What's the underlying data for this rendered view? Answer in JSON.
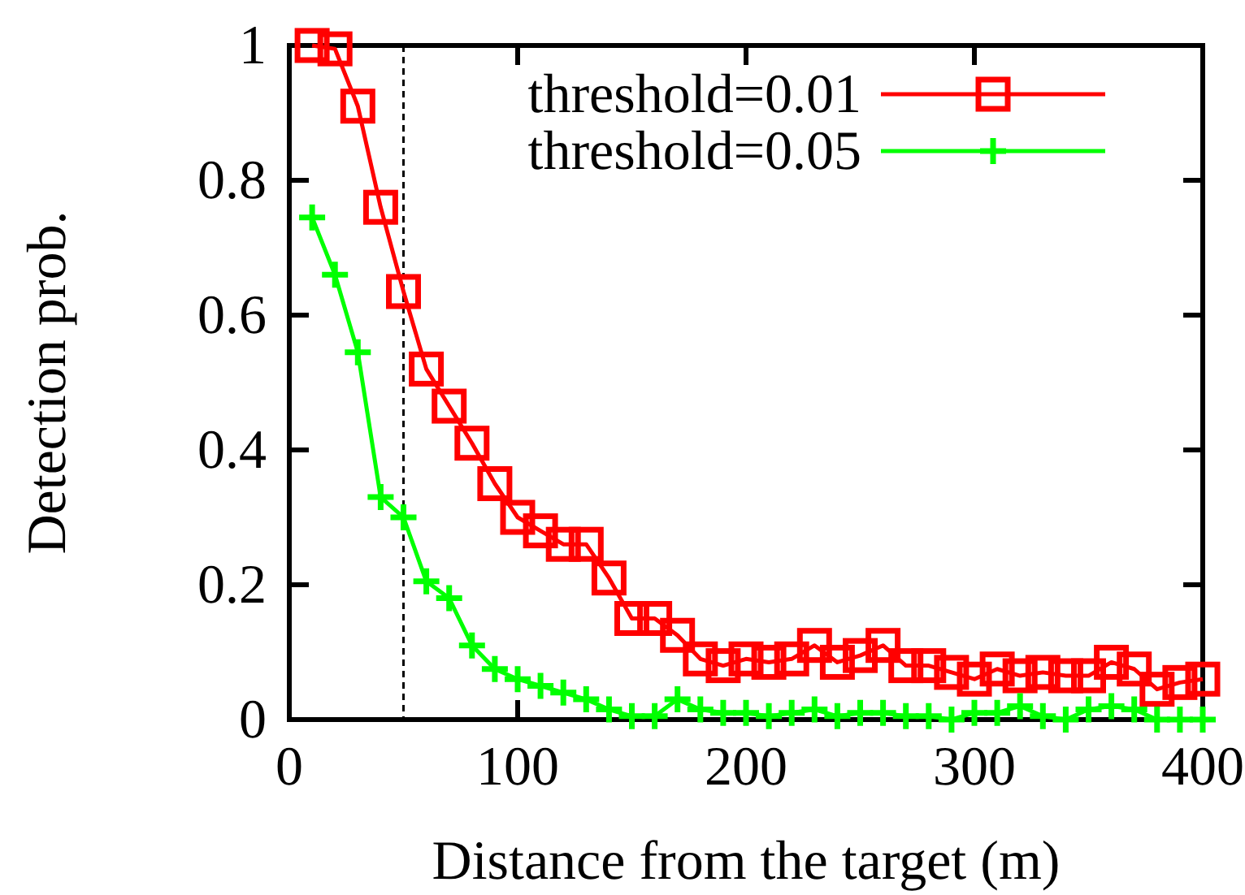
{
  "chart_data": {
    "type": "line",
    "xlabel": "Distance from the target (m)",
    "ylabel": "Detection prob.",
    "x": [
      10,
      20,
      30,
      40,
      50,
      60,
      70,
      80,
      90,
      100,
      110,
      120,
      130,
      140,
      150,
      160,
      170,
      180,
      190,
      200,
      210,
      220,
      230,
      240,
      250,
      260,
      270,
      280,
      290,
      300,
      310,
      320,
      330,
      340,
      350,
      360,
      370,
      380,
      390,
      400
    ],
    "series": [
      {
        "name": "threshold=0.01",
        "color": "#ff0000",
        "marker": "square",
        "values": [
          1.0,
          0.995,
          0.91,
          0.76,
          0.635,
          0.52,
          0.465,
          0.41,
          0.35,
          0.3,
          0.28,
          0.26,
          0.26,
          0.21,
          0.15,
          0.15,
          0.125,
          0.09,
          0.08,
          0.09,
          0.085,
          0.09,
          0.11,
          0.085,
          0.095,
          0.11,
          0.08,
          0.08,
          0.07,
          0.06,
          0.075,
          0.065,
          0.07,
          0.065,
          0.065,
          0.085,
          0.075,
          0.045,
          0.055,
          0.06
        ]
      },
      {
        "name": "threshold=0.05",
        "color": "#00ff00",
        "marker": "cross",
        "values": [
          0.745,
          0.66,
          0.545,
          0.33,
          0.3,
          0.205,
          0.18,
          0.11,
          0.075,
          0.06,
          0.05,
          0.04,
          0.03,
          0.015,
          0.005,
          0.005,
          0.03,
          0.015,
          0.01,
          0.01,
          0.005,
          0.01,
          0.015,
          0.005,
          0.01,
          0.01,
          0.005,
          0.005,
          0.0,
          0.01,
          0.01,
          0.02,
          0.005,
          0.0,
          0.015,
          0.02,
          0.015,
          0.0,
          0.0,
          0.0
        ]
      }
    ],
    "xlim": [
      0,
      400
    ],
    "xticks": [
      0,
      100,
      200,
      300,
      400
    ],
    "ylim": [
      0,
      1
    ],
    "yticks": [
      0,
      0.2,
      0.4,
      0.6,
      0.8,
      1
    ],
    "ref_lines": [
      {
        "axis": "x",
        "value": 50,
        "color": "#000000",
        "line_style": "dashed"
      }
    ],
    "legend": "top right",
    "grid": false,
    "line_style": "solid"
  }
}
